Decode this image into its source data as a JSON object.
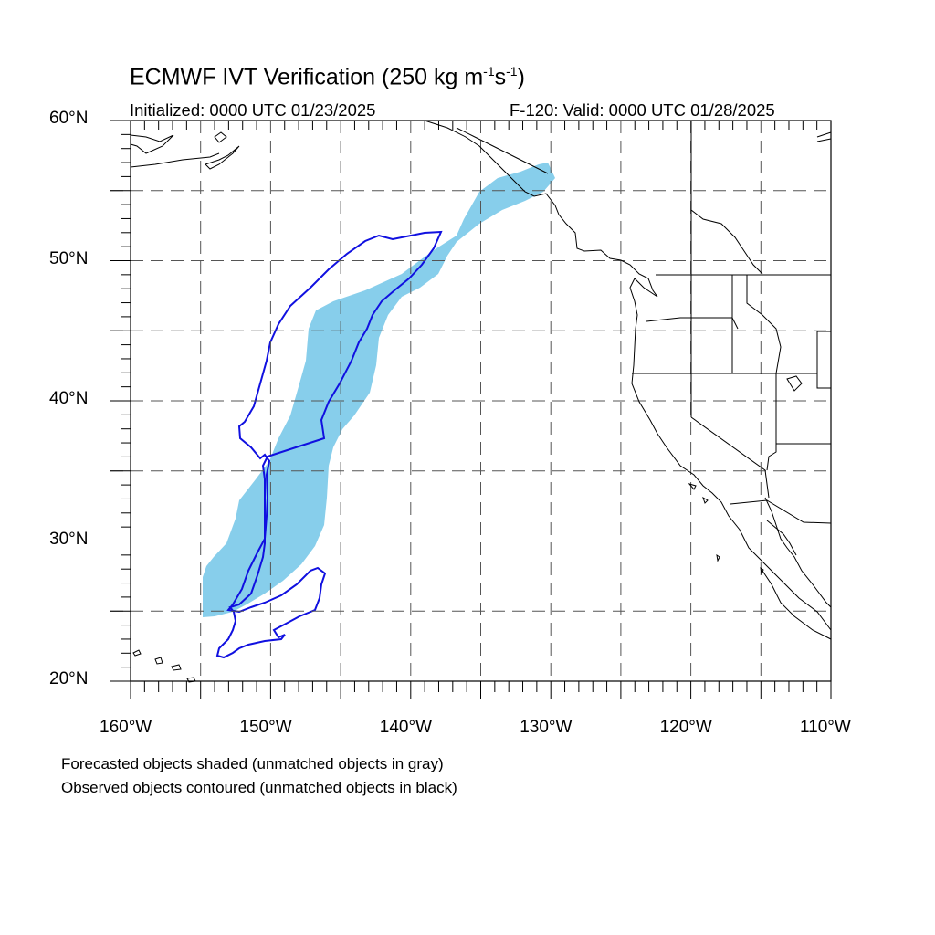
{
  "title": {
    "main": "ECMWF IVT Verification (250 kg m",
    "sup1": "-1",
    "mid": "s",
    "sup2": "-1",
    "end": ")"
  },
  "subtitle_left": "Initialized: 0000 UTC 01/23/2025",
  "subtitle_right": "F-120: Valid: 0000 UTC 01/28/2025",
  "lat_labels": [
    "60°N",
    "50°N",
    "40°N",
    "30°N",
    "20°N"
  ],
  "lon_labels": [
    "160°W",
    "150°W",
    "140°W",
    "130°W",
    "120°W",
    "110°W"
  ],
  "caption_line1": "Forecasted objects shaded (unmatched objects in gray)",
  "caption_line2": "Observed objects contoured (unmatched objects in black)",
  "colors": {
    "forecast_fill": "#87CEEB",
    "observed_contour": "#1010E0",
    "coastline": "#000000",
    "grid": "#555555"
  },
  "extent": {
    "lon_min": -160,
    "lon_max": -110,
    "lat_min": 20,
    "lat_max": 60
  }
}
